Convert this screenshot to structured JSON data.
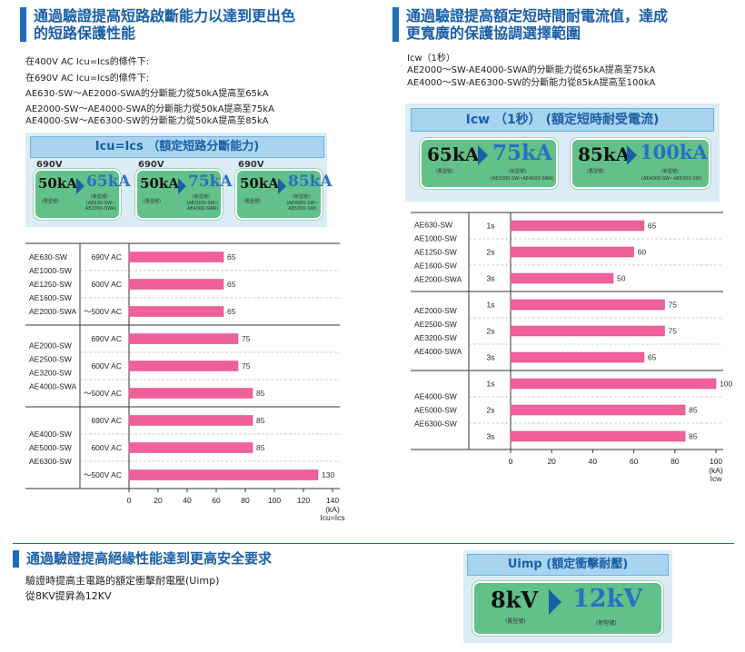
{
  "sections": {
    "s1_title": [
      "通過驗證提高短路啟斷能力以達到更出色",
      "的短路保護性能"
    ],
    "s1_lines": [
      "在400V AC Icu=Ics的條件下:",
      "在690V AC Icu=Ics的條件下:",
      "AE630-SW～AE2000-SWA的分斷能力從50kA提高至65kA",
      "AE2000-SW～AE4000-SWA的分斷能力從50kA提高至75kA",
      "AE4000-SW～AE6300-SW的分斷能力從50kA提高至85kA"
    ],
    "s2_title": [
      "通過驗證提高額定短時間耐電流值，達成",
      "更寬廣的保護協調選擇範圍"
    ],
    "s2_lines": [
      "Icw（1秒）",
      "AE2000～SW-AE4000-SWA的分斷能力從65kA提高至75kA",
      "AE4000～SW-AE6300-SW的分斷能力從85kA提高至100kA"
    ],
    "s3_title": "通過驗證提高絕緣性能達到更高安全要求",
    "s3_lines": [
      "驗證時提高主電路的額定衝擊耐電壓(Uimp)",
      "從8KV提昇為12KV"
    ]
  },
  "panel1": {
    "header": "Icu=Ics （額定短路分斷能力)",
    "boxes": [
      {
        "volt": "690V",
        "old": "50kA",
        "new": "65kA",
        "old_label": "(舊型號)",
        "new_label": "(新型號)",
        "models": "(AE630-SW~ AE2000-SWA)"
      },
      {
        "volt": "690V",
        "old": "50kA",
        "new": "75kA",
        "old_label": "(舊型號)",
        "new_label": "(新型號)",
        "models": "(AE2000-SW~ AE4000-SWA)"
      },
      {
        "volt": "690V",
        "old": "50kA",
        "new": "85kA",
        "old_label": "(舊型號)",
        "new_label": "(新型號)",
        "models": "(AE4000-SW~ AE6300-SW)"
      }
    ]
  },
  "panel2": {
    "header": "Icw （1秒） (額定短時耐受電流)",
    "boxes": [
      {
        "old": "65kA",
        "new": "75kA",
        "old_label": "(舊型號)",
        "new_label": "(新型號)",
        "models": "(AE2000-SW~AE4000-SWA)"
      },
      {
        "old": "85kA",
        "new": "100kA",
        "old_label": "(舊型號)",
        "new_label": "(新型號)",
        "models": "(AE4000-SW~AE6300-SW)"
      }
    ]
  },
  "panel3": {
    "header": "Uimp (額定衝擊耐壓)",
    "old": "8kV",
    "new": "12kV",
    "old_label": "(舊型號)",
    "new_label": "(新型號)"
  },
  "chart_data": [
    {
      "type": "bar",
      "orientation": "horizontal",
      "groups": [
        {
          "models": [
            "AE630-SW",
            "AE1000-SW",
            "AE1250-SW",
            "AE1600-SW",
            "AE2000-SWA"
          ],
          "rows": [
            {
              "label": "690V AC",
              "value": 65
            },
            {
              "label": "600V AC",
              "value": 65
            },
            {
              "label": "～500V AC",
              "value": 65
            }
          ]
        },
        {
          "models": [
            "AE2000-SW",
            "AE2500-SW",
            "AE3200-SW",
            "AE4000-SWA"
          ],
          "rows": [
            {
              "label": "690V AC",
              "value": 75
            },
            {
              "label": "600V AC",
              "value": 75
            },
            {
              "label": "～500V AC",
              "value": 85
            }
          ]
        },
        {
          "models": [
            "AE4000-SW",
            "AE5000-SW",
            "AE6300-SW"
          ],
          "rows": [
            {
              "label": "690V AC",
              "value": 85
            },
            {
              "label": "600V AC",
              "value": 85
            },
            {
              "label": "～500V AC",
              "value": 130
            }
          ]
        }
      ],
      "xticks": [
        0,
        20,
        40,
        60,
        80,
        100,
        120,
        140
      ],
      "xlim": [
        0,
        140
      ],
      "xlabel": [
        "(kA)",
        "Icu=Ics"
      ],
      "bar_color": "#f0609a"
    },
    {
      "type": "bar",
      "orientation": "horizontal",
      "groups": [
        {
          "models": [
            "AE630-SW",
            "AE1000-SW",
            "AE1250-SW",
            "AE1600-SW",
            "AE2000-SWA"
          ],
          "rows": [
            {
              "label": "1s",
              "value": 65
            },
            {
              "label": "2s",
              "value": 60
            },
            {
              "label": "3s",
              "value": 50
            }
          ]
        },
        {
          "models": [
            "AE2000-SW",
            "AE2500-SW",
            "AE3200-SW",
            "AE4000-SWA"
          ],
          "rows": [
            {
              "label": "1s",
              "value": 75
            },
            {
              "label": "2s",
              "value": 75
            },
            {
              "label": "3s",
              "value": 65
            }
          ]
        },
        {
          "models": [
            "AE4000-SW",
            "AE5000-SW",
            "AE6300-SW"
          ],
          "rows": [
            {
              "label": "1s",
              "value": 100
            },
            {
              "label": "2s",
              "value": 85
            },
            {
              "label": "3s",
              "value": 85
            }
          ]
        }
      ],
      "xticks": [
        0,
        20,
        40,
        60,
        80,
        100
      ],
      "xlim": [
        0,
        100
      ],
      "xlabel": [
        "(kA)",
        "Icw"
      ],
      "bar_color": "#f0609a"
    }
  ]
}
